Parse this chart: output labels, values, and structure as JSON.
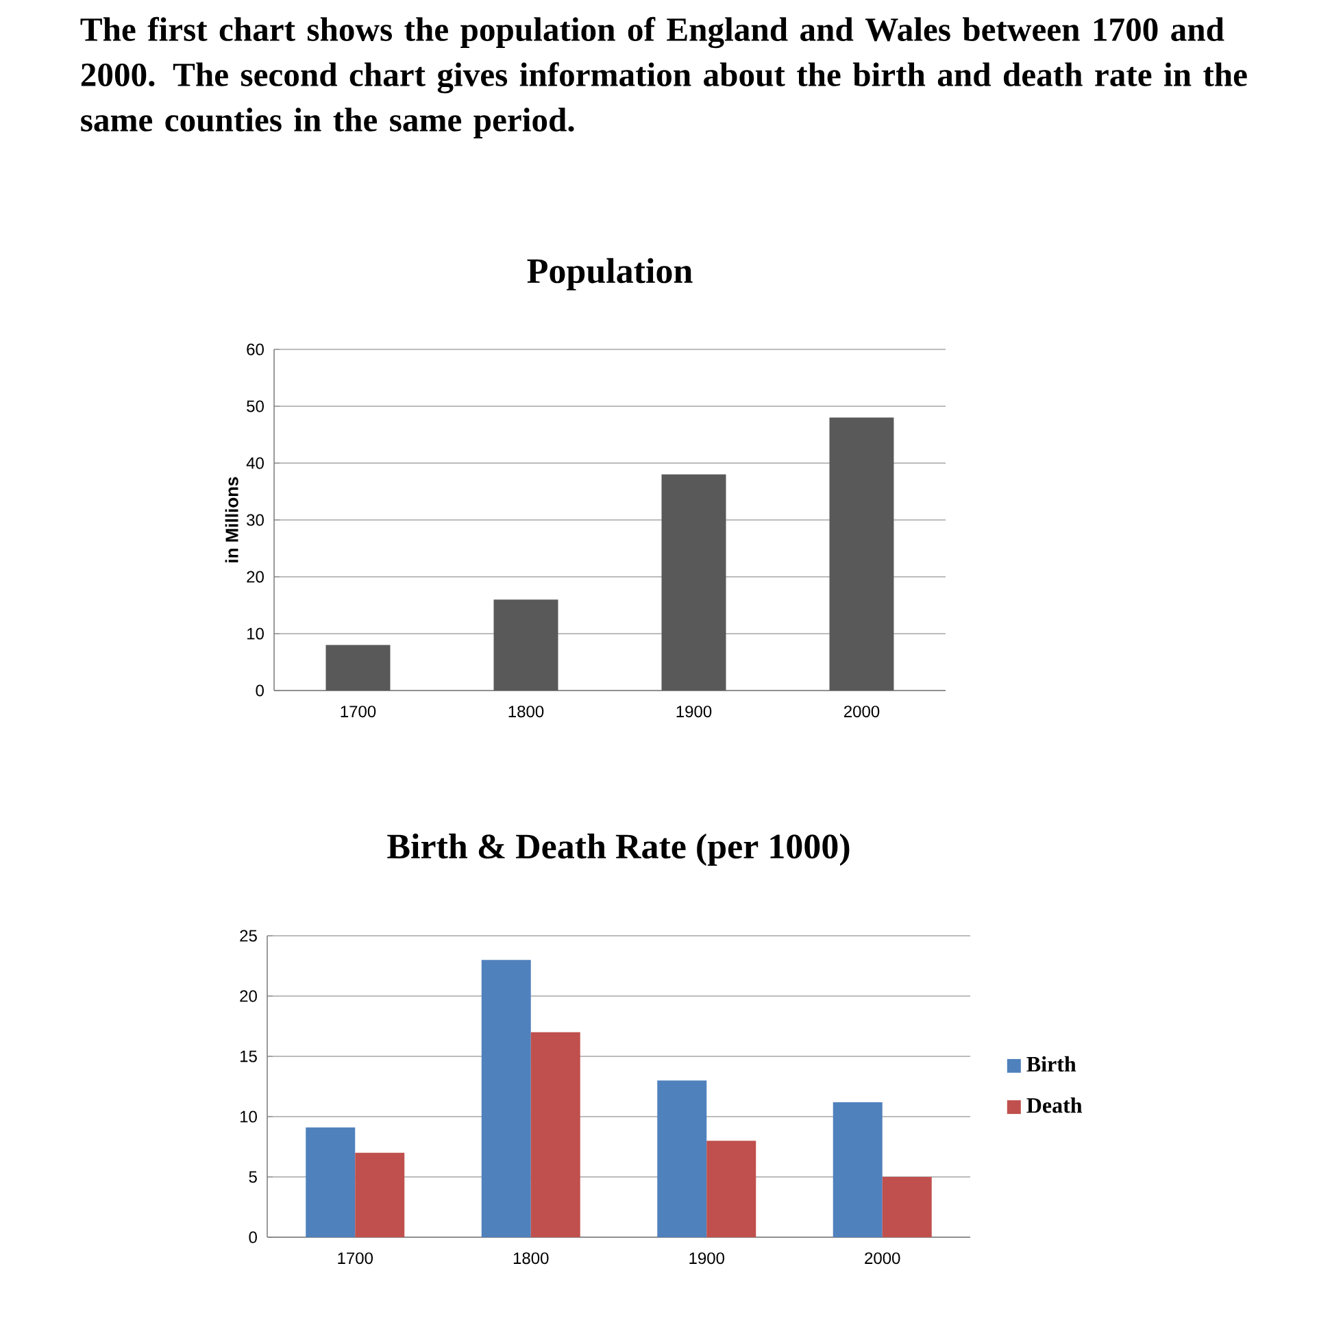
{
  "chart_data": [
    {
      "type": "bar",
      "title": "Population",
      "annotations": [
        "The first chart shows the population of England and Wales between 1700 and 2000. The second chart gives information about the birth and death rate in the same counties in the same period."
      ],
      "ylabel": "in Millions",
      "categories": [
        "1700",
        "1800",
        "1900",
        "2000"
      ],
      "values": [
        8,
        16,
        38,
        48
      ],
      "color": "#595959",
      "ylim": [
        0,
        60
      ],
      "yticks": [
        0,
        10,
        20,
        30,
        40,
        50,
        60
      ],
      "grid": "y"
    },
    {
      "type": "bar",
      "title": "Birth & Death Rate (per 1000)",
      "categories": [
        "1700",
        "1800",
        "1900",
        "2000"
      ],
      "series": [
        {
          "name": "Birth",
          "color": "#4f81bd",
          "values": [
            9.1,
            23,
            13,
            11.2
          ]
        },
        {
          "name": "Death",
          "color": "#c0504d",
          "values": [
            7,
            17,
            8,
            5
          ]
        }
      ],
      "ylim": [
        0,
        25
      ],
      "yticks": [
        0,
        5,
        10,
        15,
        20,
        25
      ],
      "grid": "y",
      "legend": "right"
    }
  ]
}
